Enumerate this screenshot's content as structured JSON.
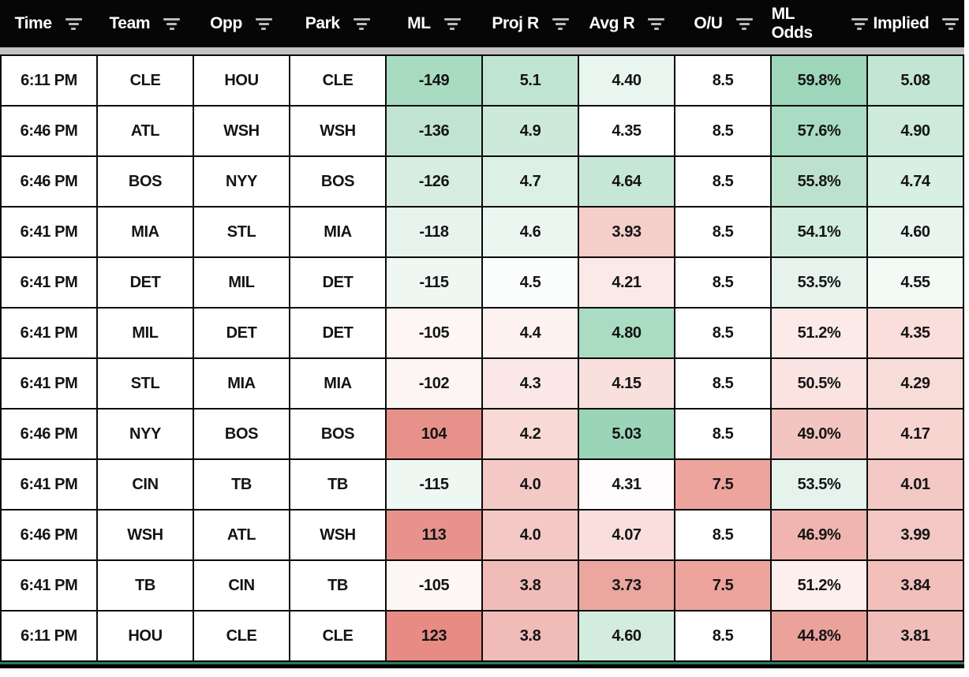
{
  "colors": {
    "header_bg": "#060606",
    "header_text": "#ffffff",
    "filter_icon": "#b9b9b9",
    "divider_gray": "#c3c3c3",
    "cell_border": "#0b0b0b",
    "bottom_green": "#2b7b57",
    "strong_green": "#9ed6ba",
    "strong_red": "#e8918b"
  },
  "table": {
    "columns": [
      {
        "key": "time",
        "label": "Time"
      },
      {
        "key": "team",
        "label": "Team"
      },
      {
        "key": "opp",
        "label": "Opp"
      },
      {
        "key": "park",
        "label": "Park"
      },
      {
        "key": "ml",
        "label": "ML"
      },
      {
        "key": "proj_r",
        "label": "Proj R"
      },
      {
        "key": "avg_r",
        "label": "Avg R"
      },
      {
        "key": "ou",
        "label": "O/U"
      },
      {
        "key": "ml_odds",
        "label": "ML Odds"
      },
      {
        "key": "implied",
        "label": "Implied"
      }
    ],
    "rows": [
      {
        "cells": [
          {
            "v": "6:11 PM",
            "bg": "#ffffff"
          },
          {
            "v": "CLE",
            "bg": "#ffffff"
          },
          {
            "v": "HOU",
            "bg": "#ffffff"
          },
          {
            "v": "CLE",
            "bg": "#ffffff"
          },
          {
            "v": "-149",
            "bg": "#a8dbc0"
          },
          {
            "v": "5.1",
            "bg": "#c0e4d2"
          },
          {
            "v": "4.40",
            "bg": "#e9f5ef"
          },
          {
            "v": "8.5",
            "bg": "#ffffff"
          },
          {
            "v": "59.8%",
            "bg": "#9ed6ba"
          },
          {
            "v": "5.08",
            "bg": "#c3e6d4"
          }
        ]
      },
      {
        "cells": [
          {
            "v": "6:46 PM",
            "bg": "#ffffff"
          },
          {
            "v": "ATL",
            "bg": "#ffffff"
          },
          {
            "v": "WSH",
            "bg": "#ffffff"
          },
          {
            "v": "WSH",
            "bg": "#ffffff"
          },
          {
            "v": "-136",
            "bg": "#c0e4d1"
          },
          {
            "v": "4.9",
            "bg": "#cce9d9"
          },
          {
            "v": "4.35",
            "bg": "#fefefe"
          },
          {
            "v": "8.5",
            "bg": "#ffffff"
          },
          {
            "v": "57.6%",
            "bg": "#a9dcc3"
          },
          {
            "v": "4.90",
            "bg": "#cdeada"
          }
        ]
      },
      {
        "cells": [
          {
            "v": "6:46 PM",
            "bg": "#ffffff"
          },
          {
            "v": "BOS",
            "bg": "#ffffff"
          },
          {
            "v": "NYY",
            "bg": "#ffffff"
          },
          {
            "v": "BOS",
            "bg": "#ffffff"
          },
          {
            "v": "-126",
            "bg": "#d7ede2"
          },
          {
            "v": "4.7",
            "bg": "#dcf0e6"
          },
          {
            "v": "4.64",
            "bg": "#c6e7d5"
          },
          {
            "v": "8.5",
            "bg": "#ffffff"
          },
          {
            "v": "55.8%",
            "bg": "#bce2ce"
          },
          {
            "v": "4.74",
            "bg": "#d8efe4"
          }
        ]
      },
      {
        "cells": [
          {
            "v": "6:41 PM",
            "bg": "#ffffff"
          },
          {
            "v": "MIA",
            "bg": "#ffffff"
          },
          {
            "v": "STL",
            "bg": "#ffffff"
          },
          {
            "v": "MIA",
            "bg": "#ffffff"
          },
          {
            "v": "-118",
            "bg": "#e7f4ed"
          },
          {
            "v": "4.6",
            "bg": "#ecf6f1"
          },
          {
            "v": "3.93",
            "bg": "#f5cdc9"
          },
          {
            "v": "8.5",
            "bg": "#ffffff"
          },
          {
            "v": "54.1%",
            "bg": "#d2ecdf"
          },
          {
            "v": "4.60",
            "bg": "#e8f5ef"
          }
        ]
      },
      {
        "cells": [
          {
            "v": "6:41 PM",
            "bg": "#ffffff"
          },
          {
            "v": "DET",
            "bg": "#ffffff"
          },
          {
            "v": "MIL",
            "bg": "#ffffff"
          },
          {
            "v": "DET",
            "bg": "#ffffff"
          },
          {
            "v": "-115",
            "bg": "#eef7f2"
          },
          {
            "v": "4.5",
            "bg": "#fbfdfc"
          },
          {
            "v": "4.21",
            "bg": "#fbe9e7"
          },
          {
            "v": "8.5",
            "bg": "#ffffff"
          },
          {
            "v": "53.5%",
            "bg": "#e5f3ec"
          },
          {
            "v": "4.55",
            "bg": "#f3faf6"
          }
        ]
      },
      {
        "cells": [
          {
            "v": "6:41 PM",
            "bg": "#ffffff"
          },
          {
            "v": "MIL",
            "bg": "#ffffff"
          },
          {
            "v": "DET",
            "bg": "#ffffff"
          },
          {
            "v": "DET",
            "bg": "#ffffff"
          },
          {
            "v": "-105",
            "bg": "#fdf6f5"
          },
          {
            "v": "4.4",
            "bg": "#fdf2f0"
          },
          {
            "v": "4.80",
            "bg": "#a9dcc1"
          },
          {
            "v": "8.5",
            "bg": "#ffffff"
          },
          {
            "v": "51.2%",
            "bg": "#fceae8"
          },
          {
            "v": "4.35",
            "bg": "#f9dedb"
          }
        ]
      },
      {
        "cells": [
          {
            "v": "6:41 PM",
            "bg": "#ffffff"
          },
          {
            "v": "STL",
            "bg": "#ffffff"
          },
          {
            "v": "MIA",
            "bg": "#ffffff"
          },
          {
            "v": "MIA",
            "bg": "#ffffff"
          },
          {
            "v": "-102",
            "bg": "#fdf5f4"
          },
          {
            "v": "4.3",
            "bg": "#fbe8e6"
          },
          {
            "v": "4.15",
            "bg": "#f9e0dd"
          },
          {
            "v": "8.5",
            "bg": "#ffffff"
          },
          {
            "v": "50.5%",
            "bg": "#fae3e0"
          },
          {
            "v": "4.29",
            "bg": "#f8dcd8"
          }
        ]
      },
      {
        "cells": [
          {
            "v": "6:46 PM",
            "bg": "#ffffff"
          },
          {
            "v": "NYY",
            "bg": "#ffffff"
          },
          {
            "v": "BOS",
            "bg": "#ffffff"
          },
          {
            "v": "BOS",
            "bg": "#ffffff"
          },
          {
            "v": "104",
            "bg": "#e8918b"
          },
          {
            "v": "4.2",
            "bg": "#f8d9d5"
          },
          {
            "v": "5.03",
            "bg": "#9bd5b8"
          },
          {
            "v": "8.5",
            "bg": "#ffffff"
          },
          {
            "v": "49.0%",
            "bg": "#f2c5c0"
          },
          {
            "v": "4.17",
            "bg": "#f7d4d0"
          }
        ]
      },
      {
        "cells": [
          {
            "v": "6:41 PM",
            "bg": "#ffffff"
          },
          {
            "v": "CIN",
            "bg": "#ffffff"
          },
          {
            "v": "TB",
            "bg": "#ffffff"
          },
          {
            "v": "TB",
            "bg": "#ffffff"
          },
          {
            "v": "-115",
            "bg": "#eef7f2"
          },
          {
            "v": "4.0",
            "bg": "#f4c9c5"
          },
          {
            "v": "4.31",
            "bg": "#fefcfc"
          },
          {
            "v": "7.5",
            "bg": "#eda49d"
          },
          {
            "v": "53.5%",
            "bg": "#e5f3ec"
          },
          {
            "v": "4.01",
            "bg": "#f4c8c4"
          }
        ]
      },
      {
        "cells": [
          {
            "v": "6:46 PM",
            "bg": "#ffffff"
          },
          {
            "v": "WSH",
            "bg": "#ffffff"
          },
          {
            "v": "ATL",
            "bg": "#ffffff"
          },
          {
            "v": "WSH",
            "bg": "#ffffff"
          },
          {
            "v": "113",
            "bg": "#e7938c"
          },
          {
            "v": "4.0",
            "bg": "#f4c9c5"
          },
          {
            "v": "4.07",
            "bg": "#f9dedb"
          },
          {
            "v": "8.5",
            "bg": "#ffffff"
          },
          {
            "v": "46.9%",
            "bg": "#f0b5b0"
          },
          {
            "v": "3.99",
            "bg": "#f3c7c3"
          }
        ]
      },
      {
        "cells": [
          {
            "v": "6:41 PM",
            "bg": "#ffffff"
          },
          {
            "v": "TB",
            "bg": "#ffffff"
          },
          {
            "v": "CIN",
            "bg": "#ffffff"
          },
          {
            "v": "TB",
            "bg": "#ffffff"
          },
          {
            "v": "-105",
            "bg": "#fdf7f6"
          },
          {
            "v": "3.8",
            "bg": "#f1bcb7"
          },
          {
            "v": "3.73",
            "bg": "#eba69f"
          },
          {
            "v": "7.5",
            "bg": "#eda49d"
          },
          {
            "v": "51.2%",
            "bg": "#fcefed"
          },
          {
            "v": "3.84",
            "bg": "#f2bfba"
          }
        ]
      },
      {
        "cells": [
          {
            "v": "6:11 PM",
            "bg": "#ffffff"
          },
          {
            "v": "HOU",
            "bg": "#ffffff"
          },
          {
            "v": "CLE",
            "bg": "#ffffff"
          },
          {
            "v": "CLE",
            "bg": "#ffffff"
          },
          {
            "v": "123",
            "bg": "#e78b84"
          },
          {
            "v": "3.8",
            "bg": "#f1bcb7"
          },
          {
            "v": "4.60",
            "bg": "#d3ecdf"
          },
          {
            "v": "8.5",
            "bg": "#ffffff"
          },
          {
            "v": "44.8%",
            "bg": "#eba29b"
          },
          {
            "v": "3.81",
            "bg": "#f1bdb8"
          }
        ]
      }
    ]
  }
}
